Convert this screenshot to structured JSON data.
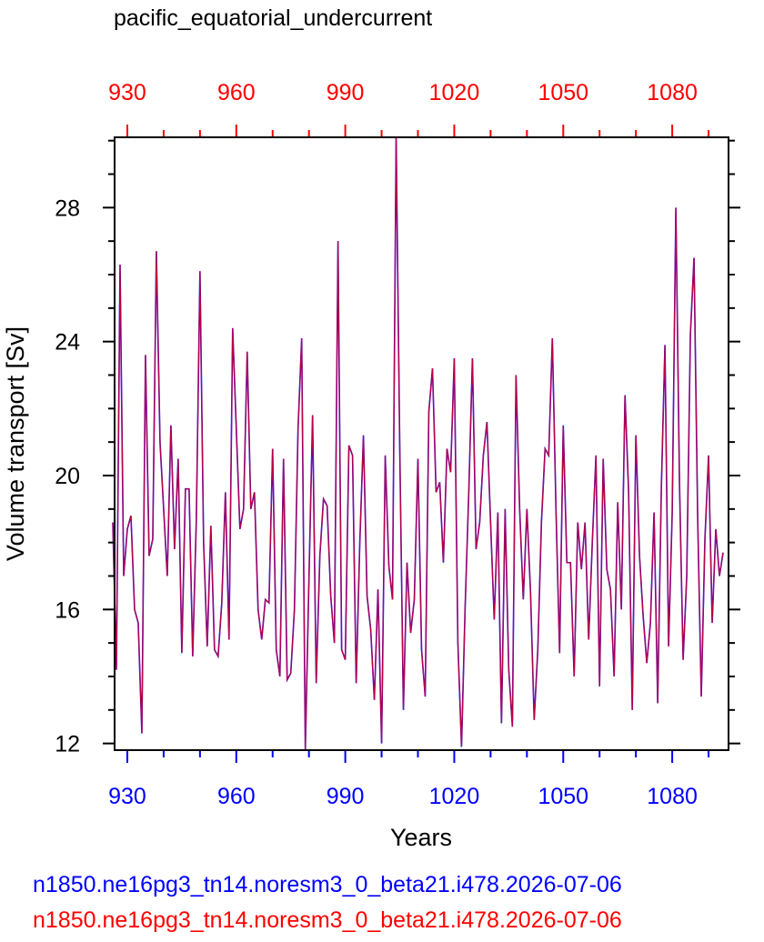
{
  "chart_data": {
    "type": "line",
    "title": "pacific_equatorial_undercurrent",
    "xlabel": "Years",
    "ylabel": "Volume transport [Sv]",
    "xlim": [
      926.5,
      1095.5
    ],
    "ylim": [
      11.8,
      30.1
    ],
    "x_ticks": [
      "930",
      "960",
      "990",
      "1020",
      "1050",
      "1080"
    ],
    "y_ticks": [
      "12",
      "16",
      "20",
      "24",
      "28"
    ],
    "grid": false,
    "top_axis_color": "#ff0000",
    "bottom_axis_color": "#0000ff",
    "x_start": 926,
    "series": [
      {
        "name": "n1850.ne16pg3_tn14.noresm3_0_beta21.i478.2026-07-06",
        "color": "#0000ff",
        "values": [
          18.6,
          14.2,
          26.3,
          17.0,
          18.4,
          18.8,
          16.0,
          15.6,
          12.3,
          23.6,
          17.6,
          18.1,
          26.7,
          21.0,
          19.0,
          17.0,
          21.5,
          17.8,
          20.5,
          14.7,
          19.6,
          19.6,
          14.6,
          18.7,
          26.1,
          18.0,
          14.9,
          18.5,
          14.8,
          14.6,
          16.2,
          19.5,
          15.1,
          24.4,
          21.4,
          18.4,
          19.0,
          23.7,
          19.0,
          19.5,
          16.0,
          15.1,
          16.3,
          16.2,
          20.8,
          14.8,
          14.0,
          20.5,
          13.9,
          14.1,
          16.0,
          21.4,
          24.1,
          11.8,
          16.9,
          21.8,
          13.8,
          17.6,
          19.3,
          19.1,
          16.4,
          15.0,
          27.0,
          14.8,
          14.5,
          20.9,
          20.6,
          13.8,
          18.0,
          21.2,
          16.4,
          15.4,
          13.3,
          16.6,
          12.0,
          20.6,
          17.3,
          16.3,
          30.1,
          20.8,
          13.0,
          17.4,
          15.3,
          16.3,
          20.5,
          14.8,
          13.4,
          21.9,
          23.2,
          19.5,
          19.8,
          17.4,
          20.8,
          20.1,
          23.5,
          15.0,
          11.9,
          16.1,
          19.5,
          23.5,
          17.8,
          18.6,
          20.6,
          21.6,
          18.6,
          15.7,
          18.9,
          12.6,
          19.0,
          14.2,
          12.5,
          23.0,
          19.0,
          16.3,
          19.0,
          16.5,
          12.7,
          14.8,
          18.6,
          20.8,
          20.6,
          24.1,
          19.0,
          14.7,
          21.5,
          17.4,
          17.4,
          14.0,
          18.6,
          17.2,
          18.6,
          15.1,
          18.0,
          20.6,
          13.7,
          20.5,
          17.2,
          16.6,
          14.0,
          19.2,
          16.0,
          22.4,
          19.5,
          13.0,
          21.2,
          17.6,
          15.8,
          14.4,
          15.6,
          18.9,
          13.2,
          19.6,
          23.9,
          14.9,
          18.9,
          28.0,
          19.8,
          14.5,
          17.0,
          24.2,
          26.5,
          18.8,
          13.4,
          18.1,
          20.6,
          15.6,
          18.4,
          17.0,
          17.7
        ]
      },
      {
        "name": "n1850.ne16pg3_tn14.noresm3_0_beta21.i478.2026-07-06",
        "color": "#ff0000",
        "values": [
          18.6,
          14.2,
          26.3,
          17.0,
          18.4,
          18.8,
          16.0,
          15.6,
          12.3,
          23.6,
          17.6,
          18.1,
          26.7,
          21.0,
          19.0,
          17.0,
          21.5,
          17.8,
          20.5,
          14.7,
          19.6,
          19.6,
          14.6,
          18.7,
          26.1,
          18.0,
          14.9,
          18.5,
          14.8,
          14.6,
          16.2,
          19.5,
          15.1,
          24.4,
          21.4,
          18.4,
          19.0,
          23.7,
          19.0,
          19.5,
          16.0,
          15.1,
          16.3,
          16.2,
          20.8,
          14.8,
          14.0,
          20.5,
          13.9,
          14.1,
          16.0,
          21.4,
          24.1,
          11.8,
          16.9,
          21.8,
          13.8,
          17.6,
          19.3,
          19.1,
          16.4,
          15.0,
          27.0,
          14.8,
          14.5,
          20.9,
          20.6,
          13.8,
          18.0,
          21.2,
          16.4,
          15.4,
          13.3,
          16.6,
          12.0,
          20.6,
          17.3,
          16.3,
          30.1,
          20.8,
          13.0,
          17.4,
          15.3,
          16.3,
          20.5,
          14.8,
          13.4,
          21.9,
          23.2,
          19.5,
          19.8,
          17.4,
          20.8,
          20.1,
          23.5,
          15.0,
          11.9,
          16.1,
          19.5,
          23.5,
          17.8,
          18.6,
          20.6,
          21.6,
          18.6,
          15.7,
          18.9,
          12.6,
          19.0,
          14.2,
          12.5,
          23.0,
          19.0,
          16.3,
          19.0,
          16.5,
          12.7,
          14.8,
          18.6,
          20.8,
          20.6,
          24.1,
          19.0,
          14.7,
          21.5,
          17.4,
          17.4,
          14.0,
          18.6,
          17.2,
          18.6,
          15.1,
          18.0,
          20.6,
          13.7,
          20.5,
          17.2,
          16.6,
          14.0,
          19.2,
          16.0,
          22.4,
          19.5,
          13.0,
          21.2,
          17.6,
          15.8,
          14.4,
          15.6,
          18.9,
          13.2,
          19.6,
          23.9,
          14.9,
          18.9,
          28.0,
          19.8,
          14.5,
          17.0,
          24.2,
          26.5,
          18.8,
          13.4,
          18.1,
          20.6,
          15.6,
          18.4,
          17.0,
          17.7
        ]
      }
    ]
  }
}
